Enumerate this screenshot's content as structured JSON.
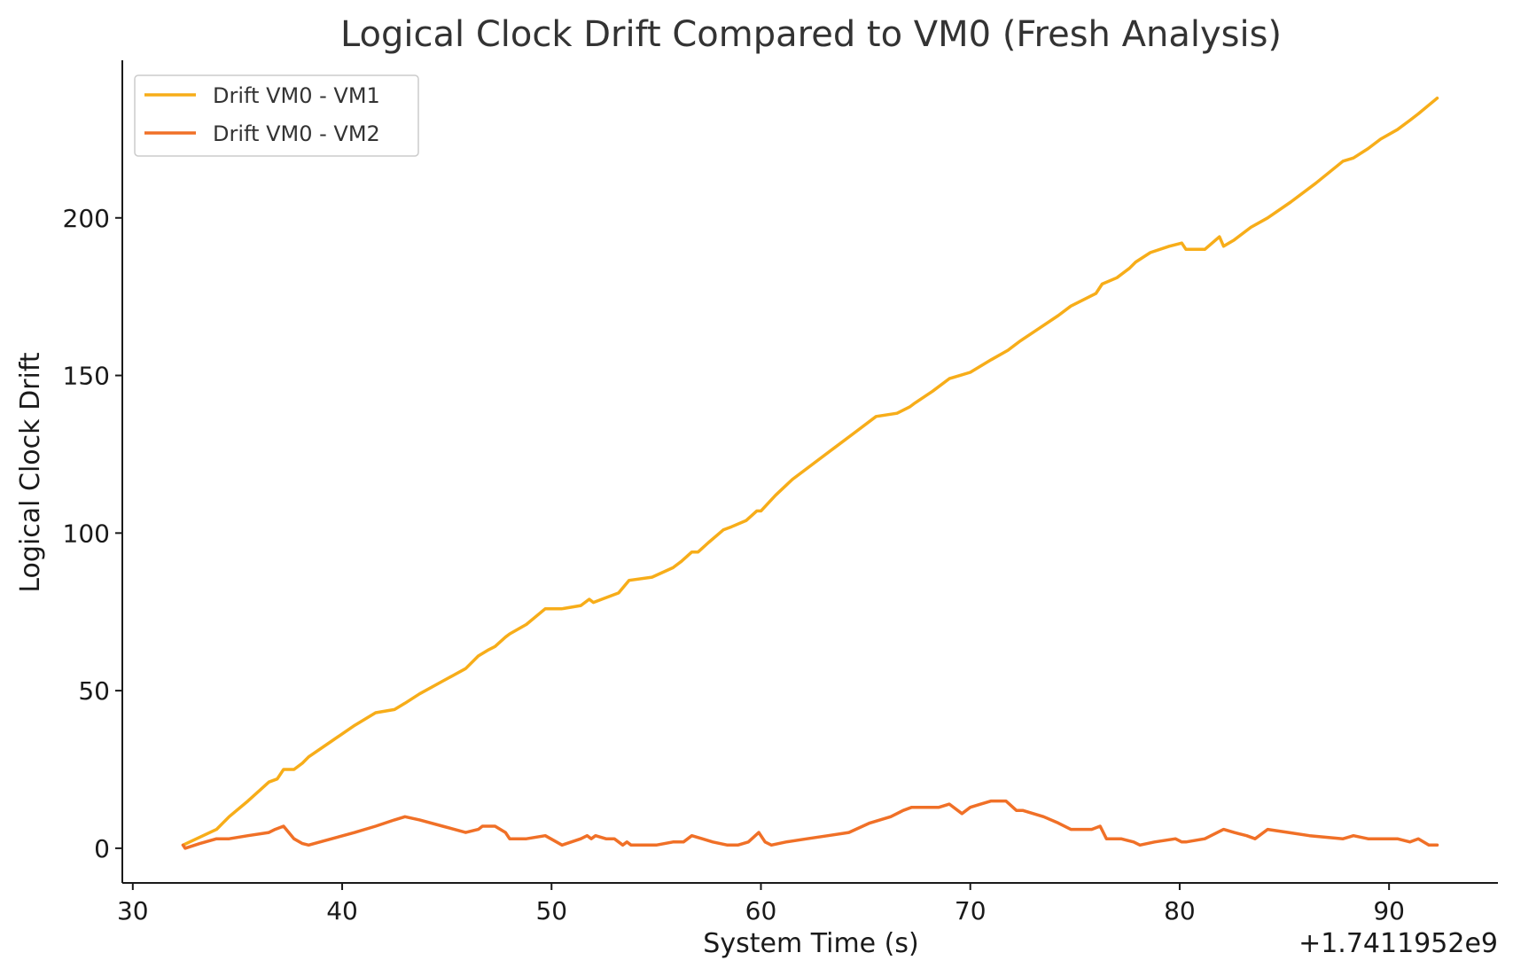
{
  "chart_data": {
    "type": "line",
    "title": "Logical Clock Drift Compared to VM0 (Fresh Analysis)",
    "xlabel": "System Time (s)",
    "ylabel": "Logical Clock Drift",
    "x_offset_label": "+1.7411952e9",
    "xlim": [
      29.5,
      95.2
    ],
    "ylim": [
      -11,
      250
    ],
    "xticks": [
      30,
      40,
      50,
      60,
      70,
      80,
      90
    ],
    "yticks": [
      0,
      50,
      100,
      150,
      200
    ],
    "grid": false,
    "legend_position": "top-left",
    "series": [
      {
        "name": "Drift VM0 - VM1",
        "color": "#f7ad19",
        "x": [
          32.4,
          33.2,
          34.0,
          34.6,
          35.5,
          36.5,
          36.9,
          37.2,
          37.7,
          38.1,
          38.4,
          39.5,
          40.6,
          41.6,
          42.5,
          43.0,
          43.7,
          44.8,
          45.9,
          46.5,
          47.0,
          47.3,
          47.8,
          48.0,
          48.8,
          49.7,
          50.5,
          51.4,
          51.8,
          52.0,
          52.4,
          53.2,
          53.7,
          54.8,
          55.8,
          56.2,
          56.7,
          57.0,
          57.5,
          58.2,
          58.6,
          59.3,
          59.8,
          60.0,
          60.7,
          61.5,
          62.5,
          63.5,
          64.5,
          65.5,
          66.5,
          67.1,
          67.3,
          68.2,
          69.0,
          69.5,
          70.0,
          71.0,
          71.8,
          72.4,
          73.3,
          74.2,
          74.8,
          76.0,
          76.3,
          77.0,
          77.6,
          77.9,
          78.6,
          79.5,
          80.1,
          80.3,
          81.2,
          81.9,
          82.1,
          82.6,
          83.4,
          84.2,
          85.3,
          86.5,
          87.8,
          88.3,
          89.0,
          89.6,
          90.4,
          91.0,
          91.4,
          92.3
        ],
        "values": [
          1,
          3.5,
          6,
          10,
          15,
          21,
          22,
          25,
          25,
          27,
          29,
          34,
          39,
          43,
          44,
          46,
          49,
          53,
          57,
          61,
          63,
          64,
          67,
          68,
          71,
          76,
          76,
          77,
          79,
          78,
          79,
          81,
          85,
          86,
          89,
          91,
          94,
          94,
          97,
          101,
          102,
          104,
          107,
          107,
          112,
          117,
          122,
          127,
          132,
          137,
          138,
          140,
          141,
          145,
          149,
          150,
          151,
          155,
          158,
          161,
          165,
          169,
          172,
          176,
          179,
          181,
          184,
          186,
          189,
          191,
          192,
          190,
          190,
          194,
          191,
          193,
          197,
          200,
          205,
          211,
          218,
          219,
          222,
          225,
          228,
          231,
          233,
          238
        ]
      },
      {
        "name": "Drift VM0 - VM2",
        "color": "#f07027",
        "x": [
          32.4,
          32.5,
          33.2,
          34.0,
          34.6,
          35.5,
          36.5,
          36.8,
          37.2,
          37.7,
          38.1,
          38.4,
          39.5,
          40.6,
          41.6,
          42.5,
          43.0,
          43.7,
          44.8,
          45.9,
          46.5,
          46.7,
          47.3,
          47.8,
          48.0,
          48.8,
          49.7,
          50.5,
          51.4,
          51.7,
          51.9,
          52.1,
          52.6,
          53.0,
          53.4,
          53.6,
          53.8,
          54.4,
          55.0,
          55.8,
          56.3,
          56.7,
          57.2,
          57.7,
          58.4,
          58.9,
          59.4,
          59.9,
          60.2,
          60.5,
          61.2,
          62.2,
          63.2,
          64.2,
          65.2,
          66.2,
          66.8,
          67.2,
          67.5,
          68.5,
          69.0,
          69.6,
          70.0,
          70.5,
          71.0,
          71.7,
          72.2,
          72.5,
          73.5,
          74.2,
          74.8,
          75.8,
          76.2,
          76.5,
          77.2,
          77.8,
          78.1,
          78.8,
          79.8,
          80.1,
          80.3,
          81.2,
          81.8,
          82.1,
          82.6,
          83.2,
          83.6,
          84.2,
          85.2,
          86.2,
          87.8,
          88.3,
          89.0,
          89.6,
          90.4,
          91.0,
          91.4,
          91.9,
          92.3
        ],
        "values": [
          1,
          0,
          1.5,
          3,
          3,
          4,
          5,
          6,
          7,
          3,
          1.5,
          1,
          3,
          5,
          7,
          9,
          10,
          9,
          7,
          5,
          6,
          7,
          7,
          5,
          3,
          3,
          4,
          1,
          3,
          4,
          3,
          4,
          3,
          3,
          1,
          2,
          1,
          1,
          1,
          2,
          2,
          4,
          3,
          2,
          1,
          1,
          2,
          5,
          2,
          1,
          2,
          3,
          4,
          5,
          8,
          10,
          12,
          13,
          13,
          13,
          14,
          11,
          13,
          14,
          15,
          15,
          12,
          12,
          10,
          8,
          6,
          6,
          7,
          3,
          3,
          2,
          1,
          2,
          3,
          2,
          2,
          3,
          5,
          6,
          5,
          4,
          3,
          6,
          5,
          4,
          3,
          4,
          3,
          3,
          3,
          2,
          3,
          1,
          1
        ]
      }
    ]
  }
}
